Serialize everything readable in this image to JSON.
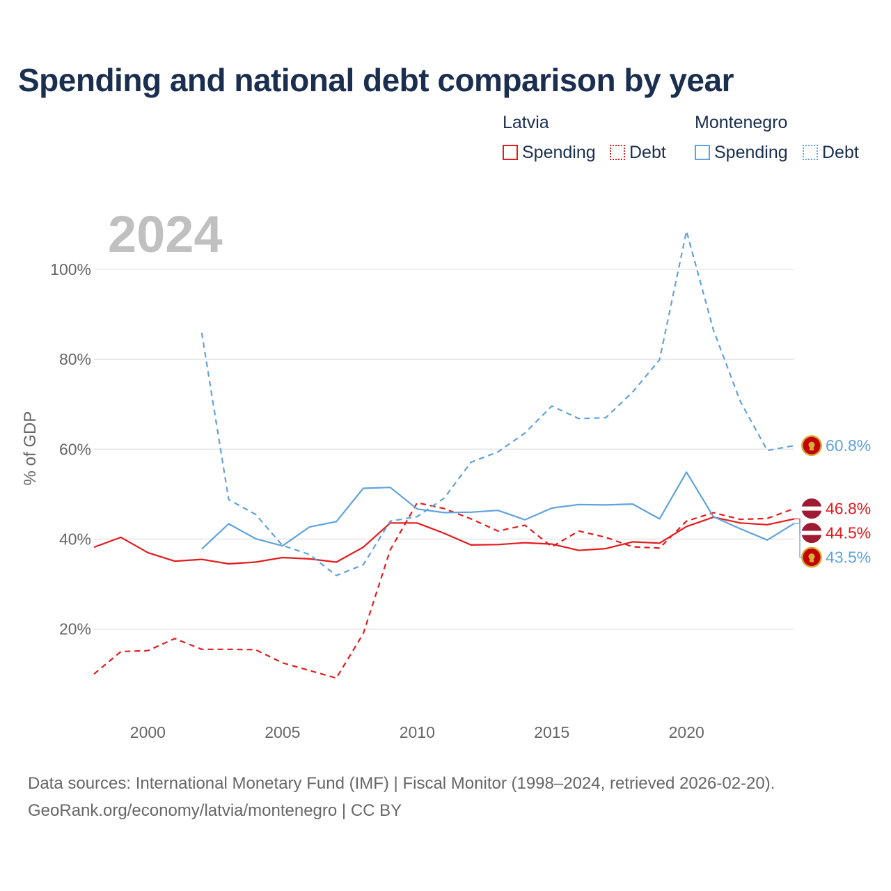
{
  "title": "Spending and national debt comparison by year",
  "legend": {
    "latvia": {
      "name": "Latvia",
      "spending": "Spending",
      "debt": "Debt"
    },
    "montenegro": {
      "name": "Montenegro",
      "spending": "Spending",
      "debt": "Debt"
    }
  },
  "sources": {
    "line1": "Data sources: International Monetary Fund (IMF) | Fiscal Monitor (1998–2024, retrieved 2026-02-20).",
    "line2": "GeoRank.org/economy/latvia/montenegro | CC BY"
  },
  "colors": {
    "latvia": "#e41a1c",
    "montenegro": "#5fa2dd",
    "grid": "#e6e6e6",
    "year_watermark": "#c0c0c0",
    "axis_text": "#666666"
  },
  "chart_data": {
    "type": "line",
    "ylabel": "% of GDP",
    "xlabel": "",
    "year_watermark": "2024",
    "xlim": [
      1998,
      2024
    ],
    "ylim": [
      2,
      115
    ],
    "x_ticks": [
      2000,
      2005,
      2010,
      2015,
      2020
    ],
    "x_tick_labels": [
      "2000",
      "2005",
      "2010",
      "2015",
      "2020"
    ],
    "y_ticks": [
      20,
      40,
      60,
      80,
      100
    ],
    "y_tick_labels": [
      "20%",
      "40%",
      "60%",
      "80%",
      "100%"
    ],
    "grid": true,
    "series": [
      {
        "id": "latvia-spending",
        "name": "Latvia Spending",
        "country": "latvia",
        "style": "solid",
        "x": [
          1998,
          1999,
          2000,
          2001,
          2002,
          2003,
          2004,
          2005,
          2006,
          2007,
          2008,
          2009,
          2010,
          2011,
          2012,
          2013,
          2014,
          2015,
          2016,
          2017,
          2018,
          2019,
          2020,
          2021,
          2022,
          2023,
          2024
        ],
        "values": [
          38.2,
          40.4,
          37.0,
          35.1,
          35.5,
          34.5,
          34.9,
          35.9,
          35.6,
          34.9,
          38.2,
          43.6,
          43.6,
          41.3,
          38.7,
          38.8,
          39.2,
          38.9,
          37.5,
          37.9,
          39.4,
          39.1,
          42.8,
          44.9,
          43.6,
          43.2,
          44.5
        ],
        "end_label": "44.5%"
      },
      {
        "id": "latvia-debt",
        "name": "Latvia Debt",
        "country": "latvia",
        "style": "dashed",
        "x": [
          1998,
          1999,
          2000,
          2001,
          2002,
          2003,
          2004,
          2005,
          2006,
          2007,
          2008,
          2009,
          2010,
          2011,
          2012,
          2013,
          2014,
          2015,
          2016,
          2017,
          2018,
          2019,
          2020,
          2021,
          2022,
          2023,
          2024
        ],
        "values": [
          10.0,
          15.0,
          15.2,
          17.9,
          15.5,
          15.5,
          15.4,
          12.5,
          10.8,
          9.1,
          19.0,
          37.6,
          48.1,
          46.8,
          44.5,
          41.8,
          43.1,
          38.3,
          41.8,
          40.4,
          38.3,
          38.0,
          44.0,
          45.9,
          44.4,
          44.6,
          46.8
        ],
        "end_label": "46.8%"
      },
      {
        "id": "montenegro-spending",
        "name": "Montenegro Spending",
        "country": "montenegro",
        "style": "solid",
        "x": [
          2002,
          2003,
          2004,
          2005,
          2006,
          2007,
          2008,
          2009,
          2010,
          2011,
          2012,
          2013,
          2014,
          2015,
          2016,
          2017,
          2018,
          2019,
          2020,
          2021,
          2022,
          2023,
          2024
        ],
        "values": [
          37.8,
          43.4,
          40.1,
          38.5,
          42.7,
          43.9,
          51.3,
          51.5,
          46.7,
          45.9,
          46.0,
          46.4,
          44.3,
          46.9,
          47.7,
          47.6,
          47.8,
          44.5,
          54.9,
          45.0,
          42.3,
          39.8,
          43.5
        ],
        "end_label": "43.5%"
      },
      {
        "id": "montenegro-debt",
        "name": "Montenegro Debt",
        "country": "montenegro",
        "style": "dashed",
        "x": [
          2002,
          2003,
          2004,
          2005,
          2006,
          2007,
          2008,
          2009,
          2010,
          2011,
          2012,
          2013,
          2014,
          2015,
          2016,
          2017,
          2018,
          2019,
          2020,
          2021,
          2022,
          2023,
          2024
        ],
        "values": [
          85.9,
          48.8,
          45.5,
          38.6,
          36.6,
          31.9,
          34.3,
          44.0,
          45.0,
          49.1,
          57.1,
          59.4,
          63.6,
          69.6,
          66.8,
          67.0,
          72.7,
          79.9,
          108.5,
          86.5,
          70.6,
          59.7,
          60.8
        ],
        "end_label": "60.8%"
      }
    ]
  }
}
